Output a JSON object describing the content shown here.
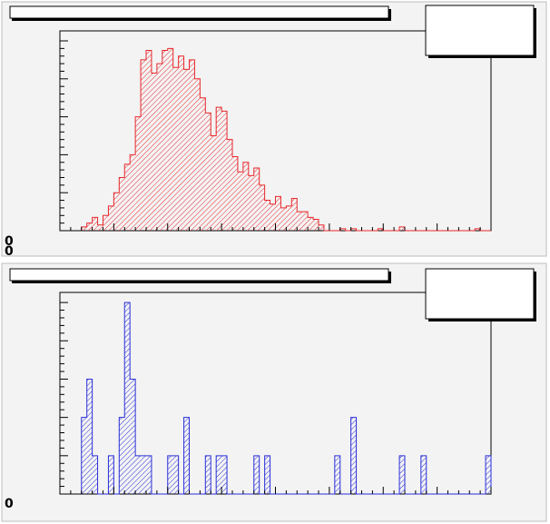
{
  "pads": [
    {
      "title_box": "",
      "stats_box": "",
      "corner_labels": [
        "0",
        "0"
      ],
      "chart_data": {
        "type": "bar",
        "style": "histogram-step",
        "color": "#e8272b",
        "fill": "hatched",
        "xlim": [
          0,
          80
        ],
        "ylim": [
          0,
          1
        ],
        "x": [
          4,
          5,
          6,
          7,
          8,
          9,
          10,
          11,
          12,
          13,
          14,
          15,
          16,
          17,
          18,
          19,
          20,
          21,
          22,
          23,
          24,
          25,
          26,
          27,
          28,
          29,
          30,
          31,
          32,
          33,
          34,
          35,
          36,
          37,
          38,
          39,
          40,
          41,
          42,
          43,
          44,
          45,
          46,
          47,
          48,
          49,
          50,
          51,
          52,
          53,
          54,
          55,
          56,
          57,
          58,
          59,
          60,
          61,
          62,
          63,
          64,
          65,
          66,
          67,
          68,
          69,
          70,
          71,
          72,
          73,
          74,
          75,
          76,
          77,
          78,
          79
        ],
        "values": [
          0.02,
          0.04,
          0.07,
          0.03,
          0.08,
          0.13,
          0.2,
          0.28,
          0.35,
          0.4,
          0.6,
          0.9,
          0.95,
          0.83,
          0.88,
          0.95,
          0.96,
          0.86,
          0.92,
          0.85,
          0.9,
          0.8,
          0.7,
          0.62,
          0.5,
          0.65,
          0.63,
          0.48,
          0.39,
          0.31,
          0.36,
          0.29,
          0.33,
          0.24,
          0.16,
          0.14,
          0.18,
          0.12,
          0.13,
          0.17,
          0.1,
          0.1,
          0.07,
          0.06,
          0.03,
          0.0,
          0.0,
          0.0,
          0.01,
          0.0,
          0.01,
          0.0,
          0.0,
          0.0,
          0.0,
          0.01,
          0.0,
          0.0,
          0.0,
          0.02,
          0.0,
          0.0,
          0.0,
          0.0,
          0.0,
          0.0,
          0.0,
          0.0,
          0.0,
          0.0,
          0.0,
          0.0,
          0.0,
          0.01,
          0.0,
          0.0
        ]
      }
    },
    {
      "title_box": "",
      "stats_box": "",
      "corner_labels": [
        "0",
        ""
      ],
      "chart_data": {
        "type": "bar",
        "style": "histogram-step",
        "color": "#2a2fd8",
        "fill": "hatched",
        "xlim": [
          0,
          80
        ],
        "ylim": [
          0,
          1
        ],
        "x": [
          4,
          5,
          6,
          7,
          8,
          9,
          10,
          11,
          12,
          13,
          14,
          15,
          16,
          17,
          18,
          19,
          20,
          21,
          22,
          23,
          24,
          25,
          26,
          27,
          28,
          29,
          30,
          31,
          32,
          33,
          34,
          35,
          36,
          37,
          38,
          39,
          40,
          41,
          42,
          43,
          44,
          45,
          46,
          47,
          48,
          49,
          50,
          51,
          52,
          53,
          54,
          55,
          56,
          57,
          58,
          59,
          60,
          61,
          62,
          63,
          64,
          65,
          66,
          67,
          68,
          69,
          70,
          71,
          72,
          73,
          74,
          75,
          76,
          77,
          78,
          79
        ],
        "values": [
          0.4,
          0.6,
          0.2,
          0,
          0,
          0.2,
          0,
          0.4,
          1.0,
          0.6,
          0.2,
          0.2,
          0.2,
          0,
          0,
          0,
          0.2,
          0.2,
          0,
          0.4,
          0,
          0,
          0,
          0.2,
          0,
          0.2,
          0.2,
          0,
          0,
          0,
          0,
          0,
          0.2,
          0,
          0.2,
          0,
          0,
          0,
          0,
          0,
          0,
          0,
          0,
          0,
          0,
          0,
          0,
          0.2,
          0,
          0,
          0.4,
          0,
          0,
          0,
          0,
          0,
          0,
          0,
          0,
          0.2,
          0,
          0,
          0,
          0.2,
          0,
          0,
          0,
          0,
          0,
          0,
          0,
          0,
          0,
          0,
          0,
          0.2
        ]
      }
    }
  ]
}
